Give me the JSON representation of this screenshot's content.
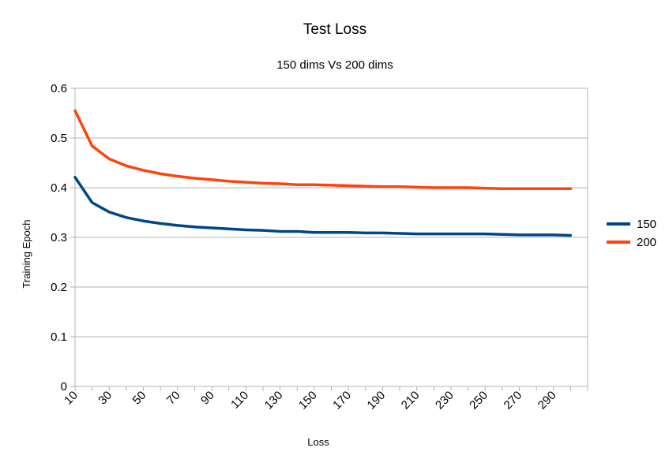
{
  "chart_data": {
    "type": "line",
    "title": "Test Loss",
    "subtitle": "150 dims Vs 200 dims",
    "xlabel": "Loss",
    "ylabel": "Training Epoch",
    "x": [
      10,
      20,
      30,
      40,
      50,
      60,
      70,
      80,
      90,
      100,
      110,
      120,
      130,
      140,
      150,
      160,
      170,
      180,
      190,
      200,
      210,
      220,
      230,
      240,
      250,
      260,
      270,
      280,
      290,
      300
    ],
    "x_tick_labels": [
      "10",
      "30",
      "50",
      "70",
      "90",
      "110",
      "130",
      "150",
      "170",
      "190",
      "210",
      "230",
      "250",
      "270",
      "290"
    ],
    "ylim": [
      0,
      0.6
    ],
    "y_ticks": [
      0,
      0.1,
      0.2,
      0.3,
      0.4,
      0.5,
      0.6
    ],
    "y_tick_labels": [
      "0",
      "0.1",
      "0.2",
      "0.3",
      "0.4",
      "0.5",
      "0.6"
    ],
    "grid": "horizontal",
    "legend_position": "right",
    "series": [
      {
        "name": "150",
        "color": "#004586",
        "values": [
          0.421,
          0.37,
          0.351,
          0.34,
          0.333,
          0.328,
          0.324,
          0.321,
          0.319,
          0.317,
          0.315,
          0.314,
          0.312,
          0.312,
          0.31,
          0.31,
          0.31,
          0.309,
          0.309,
          0.308,
          0.307,
          0.307,
          0.307,
          0.307,
          0.307,
          0.306,
          0.305,
          0.305,
          0.305,
          0.304
        ]
      },
      {
        "name": "200",
        "color": "#ff420e",
        "values": [
          0.555,
          0.484,
          0.458,
          0.444,
          0.435,
          0.428,
          0.423,
          0.419,
          0.416,
          0.413,
          0.411,
          0.409,
          0.408,
          0.406,
          0.406,
          0.405,
          0.404,
          0.403,
          0.402,
          0.402,
          0.401,
          0.4,
          0.4,
          0.4,
          0.399,
          0.398,
          0.398,
          0.398,
          0.398,
          0.398
        ]
      }
    ]
  }
}
